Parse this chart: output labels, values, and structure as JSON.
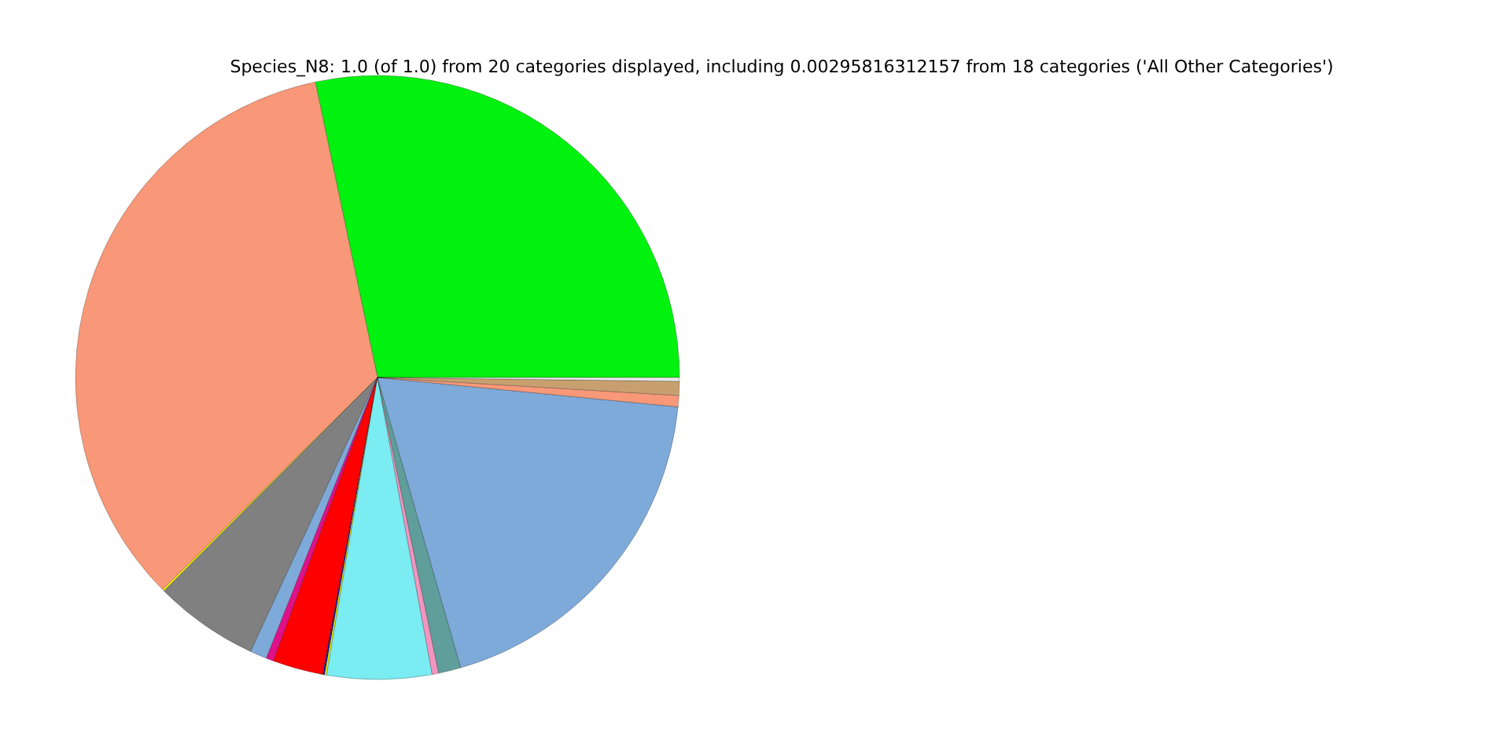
{
  "chart_data": {
    "type": "pie",
    "title": "Species_N8: 1.0 (of 1.0) from 20 categories displayed, including 0.00295816312157 from 18 categories ('All Other Categories')",
    "categories": [
      null,
      null,
      null,
      null,
      null,
      null,
      null,
      null,
      null,
      null,
      null,
      null,
      null,
      null,
      null,
      null
    ],
    "values": [
      28.3,
      34.1,
      0.1,
      5.6,
      0.9,
      0.4,
      2.7,
      0.1,
      0.1,
      5.6,
      0.35,
      1.2,
      19.0,
      0.6,
      0.75,
      0.2
    ],
    "colors": [
      "#02f20f",
      "#f89878",
      "#f0f000",
      "#808080",
      "#7eaad9",
      "#e0108a",
      "#fe0000",
      "#1a1aa0",
      "#f0f000",
      "#7aecf2",
      "#f395c0",
      "#5f9e9a",
      "#7eaad9",
      "#f89878",
      "#c8a070",
      "#e8e8e8"
    ]
  }
}
